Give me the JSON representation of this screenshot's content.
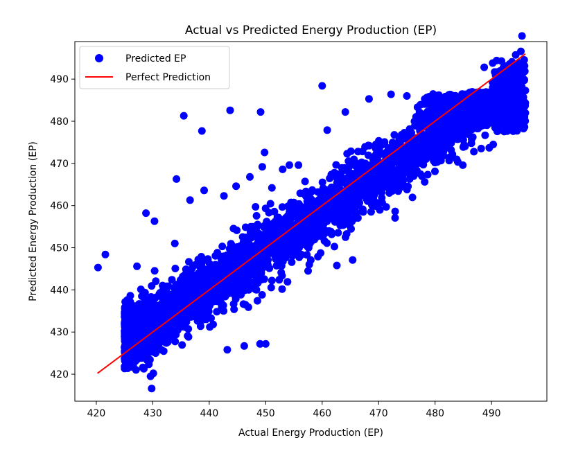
{
  "chart_data": {
    "type": "scatter",
    "title": "Actual vs Predicted Energy Production (EP)",
    "xlabel": "Actual Energy Production (EP)",
    "ylabel": "Predicted Energy Production (EP)",
    "xlim": [
      416.2,
      499.8
    ],
    "ylim": [
      413.6,
      498.9
    ],
    "xticks": [
      420,
      430,
      440,
      450,
      460,
      470,
      480,
      490
    ],
    "yticks": [
      420,
      430,
      440,
      450,
      460,
      470,
      480,
      490
    ],
    "grid": false,
    "legend_position": "top-left",
    "series": [
      {
        "name": "Predicted EP",
        "kind": "scatter",
        "color": "#0000ff",
        "points": [
          [
            420.3,
            445.3
          ],
          [
            421.6,
            448.4
          ],
          [
            427.2,
            445.6
          ],
          [
            428.8,
            458.2
          ],
          [
            430.3,
            456.3
          ],
          [
            433.9,
            451.0
          ],
          [
            434.2,
            466.3
          ],
          [
            435.5,
            481.3
          ],
          [
            436.6,
            461.3
          ],
          [
            438.7,
            477.7
          ],
          [
            439.1,
            463.6
          ],
          [
            442.6,
            462.3
          ],
          [
            443.7,
            482.6
          ],
          [
            447.2,
            466.8
          ],
          [
            448.2,
            459.7
          ],
          [
            449.1,
            482.2
          ],
          [
            449.4,
            469.2
          ],
          [
            449.8,
            472.6
          ],
          [
            451.1,
            464.2
          ],
          [
            453.0,
            468.6
          ],
          [
            454.2,
            469.6
          ],
          [
            455.8,
            469.6
          ],
          [
            460.0,
            488.4
          ],
          [
            460.9,
            477.9
          ],
          [
            464.1,
            482.2
          ],
          [
            465.4,
            447.1
          ],
          [
            468.3,
            485.3
          ],
          [
            472.2,
            486.4
          ],
          [
            475.0,
            486.0
          ],
          [
            488.7,
            492.8
          ],
          [
            490.2,
            493.8
          ],
          [
            490.9,
            494.4
          ],
          [
            429.6,
            419.5
          ],
          [
            430.1,
            420.2
          ],
          [
            429.8,
            416.6
          ],
          [
            462.6,
            445.8
          ],
          [
            457.3,
            448.3
          ],
          [
            456.3,
            451.1
          ],
          [
            452.3,
            450.2
          ],
          [
            453.6,
            449.5
          ],
          [
            450.0,
            427.2
          ],
          [
            449.0,
            427.2
          ],
          [
            446.2,
            426.7
          ],
          [
            443.2,
            425.8
          ],
          [
            452.9,
            440.2
          ],
          [
            452.4,
            442.4
          ],
          [
            446.4,
            436.5
          ],
          [
            444.4,
            435.4
          ],
          [
            440.1,
            431.2
          ],
          [
            432.4,
            427.4
          ],
          [
            425.2,
            436.0
          ],
          [
            426.8,
            427.8
          ],
          [
            435.0,
            437.8
          ],
          [
            438.3,
            442.2
          ],
          [
            441.2,
            444.1
          ],
          [
            445.2,
            446.5
          ],
          [
            447.3,
            448.2
          ],
          [
            452.1,
            454.8
          ],
          [
            456.1,
            455.9
          ],
          [
            459.2,
            458.6
          ],
          [
            462.6,
            461.6
          ],
          [
            465.4,
            464.9
          ],
          [
            469.1,
            466.5
          ],
          [
            472.2,
            470.0
          ],
          [
            475.6,
            473.2
          ],
          [
            478.8,
            477.2
          ],
          [
            481.9,
            480.3
          ],
          [
            485.1,
            482.7
          ],
          [
            488.4,
            484.5
          ],
          [
            491.7,
            486.4
          ],
          [
            493.5,
            485.1
          ],
          [
            494.9,
            484.4
          ],
          [
            489.6,
            473.7
          ],
          [
            490.3,
            474.5
          ],
          [
            485.0,
            475.6
          ]
        ]
      },
      {
        "name": "Perfect Prediction",
        "kind": "line",
        "color": "#ff0000",
        "points": [
          [
            420.2,
            420.2
          ],
          [
            496.0,
            496.0
          ]
        ]
      }
    ]
  },
  "legend": {
    "items": [
      {
        "label": "Predicted EP",
        "marker": "circle",
        "color": "#0000ff"
      },
      {
        "label": "Perfect Prediction",
        "marker": "line",
        "color": "#ff0000"
      }
    ]
  }
}
